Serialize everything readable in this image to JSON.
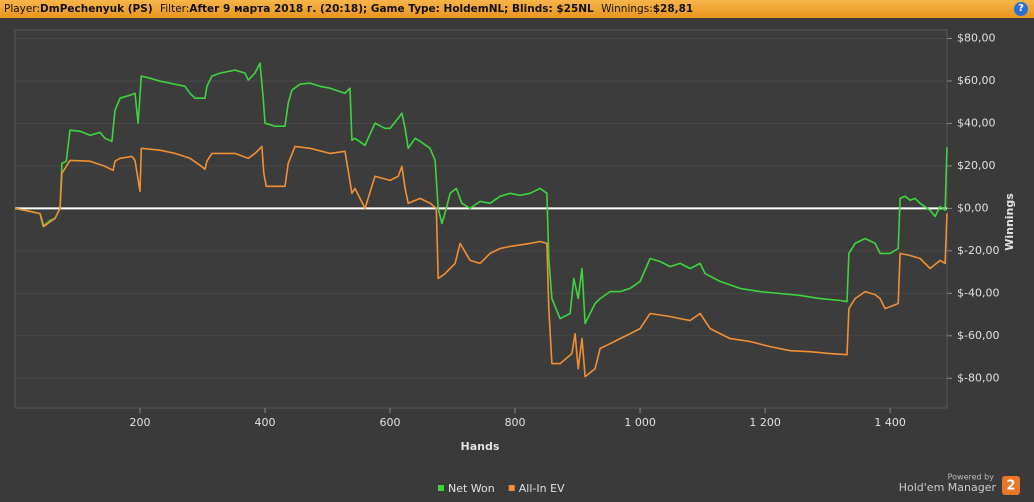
{
  "header": {
    "player_label": "Player:",
    "player": "DmPechenyuk (PS)",
    "filter_label": "Filter:",
    "filter": "After 9 марта 2018 г. (20:18); Game Type: HoldemNL; Blinds: $25NL",
    "winnings_label": "Winnings:",
    "winnings": "$28,81",
    "help": "?"
  },
  "footer": {
    "powered_by": "Powered by",
    "brand": "Hold'em Manager",
    "logo": "2"
  },
  "chart_data": {
    "type": "line",
    "xlabel": "Hands",
    "ylabel": "Winnings",
    "xlim": [
      0,
      1491
    ],
    "ylim": [
      -94,
      84
    ],
    "xticks": [
      200,
      400,
      600,
      800,
      {
        "value": 1000,
        "label": "1 000"
      },
      {
        "value": 1200,
        "label": "1 200"
      },
      {
        "value": 1400,
        "label": "1 400"
      }
    ],
    "yticks": [
      {
        "value": 80,
        "label": "$80,00"
      },
      {
        "value": 60,
        "label": "$60,00"
      },
      {
        "value": 40,
        "label": "$40,00"
      },
      {
        "value": 20,
        "label": "$20,00"
      },
      {
        "value": 0,
        "label": "$0,00"
      },
      {
        "value": -20,
        "label": "$-20,00"
      },
      {
        "value": -40,
        "label": "$-40,00"
      },
      {
        "value": -60,
        "label": "$-60,00"
      },
      {
        "value": -80,
        "label": "$-80,00"
      }
    ],
    "grid": true,
    "legend": "bottom",
    "series": [
      {
        "name": "Net Won",
        "color": "#3fd43f",
        "x": [
          0,
          24,
          40,
          45,
          56,
          64,
          72,
          75,
          82,
          88,
          104,
          120,
          136,
          144,
          155,
          160,
          168,
          184,
          192,
          197,
          202,
          216,
          232,
          248,
          272,
          280,
          288,
          304,
          307,
          315,
          328,
          352,
          368,
          373,
          384,
          392,
          397,
          400,
          416,
          432,
          437,
          443,
          456,
          472,
          488,
          504,
          528,
          536,
          539,
          544,
          560,
          576,
          592,
          600,
          613,
          619,
          624,
          629,
          640,
          648,
          664,
          672,
          677,
          683,
          690,
          696,
          706,
          715,
          728,
          744,
          760,
          776,
          792,
          808,
          824,
          840,
          851,
          854,
          859,
          872,
          888,
          894,
          901,
          907,
          912,
          920,
          928,
          936,
          952,
          968,
          984,
          1000,
          1016,
          1032,
          1048,
          1064,
          1080,
          1096,
          1104,
          1128,
          1160,
          1192,
          1224,
          1256,
          1288,
          1320,
          1331,
          1334,
          1344,
          1360,
          1376,
          1384,
          1400,
          1413,
          1416,
          1424,
          1432,
          1440,
          1448,
          1464,
          1472,
          1480,
          1488,
          1491
        ],
        "values": [
          0,
          -1.4,
          -2.4,
          -8.5,
          -5.7,
          -4.7,
          0,
          21.2,
          22.2,
          36.8,
          36.3,
          34.4,
          35.8,
          33.0,
          31.6,
          46.2,
          51.9,
          53.3,
          54.2,
          40.1,
          62.3,
          61.3,
          59.9,
          59.0,
          57.5,
          54.2,
          51.9,
          51.9,
          57.5,
          62.3,
          63.7,
          65.1,
          63.7,
          60.4,
          63.7,
          68.4,
          51.9,
          40.1,
          38.7,
          38.7,
          49.5,
          55.7,
          58.5,
          59.0,
          57.5,
          56.6,
          54.2,
          56.6,
          32.1,
          33.0,
          29.7,
          40.1,
          37.7,
          37.7,
          42.5,
          44.8,
          37.7,
          28.3,
          33.0,
          31.6,
          28.3,
          22.6,
          0,
          -7.1,
          0,
          7.1,
          9.4,
          2.4,
          0,
          3.3,
          2.4,
          5.7,
          7.1,
          6.1,
          7.1,
          9.4,
          7.1,
          -23.6,
          -42.5,
          -51.9,
          -49.5,
          -33.0,
          -42.5,
          -28.3,
          -54.2,
          -49.5,
          -44.8,
          -42.5,
          -39.2,
          -39.2,
          -37.7,
          -34.4,
          -23.6,
          -25.0,
          -27.4,
          -25.9,
          -28.3,
          -25.9,
          -30.7,
          -34.4,
          -37.7,
          -39.2,
          -40.1,
          -41.0,
          -42.5,
          -43.4,
          -43.9,
          -21.2,
          -16.5,
          -14.2,
          -16.5,
          -21.2,
          -21.2,
          -18.9,
          4.7,
          5.7,
          3.8,
          4.7,
          2.4,
          -0.9,
          -3.8,
          0.9,
          -0.9,
          28.81
        ]
      },
      {
        "name": "All-In EV",
        "color": "#f28f34",
        "x": [
          0,
          40,
          46,
          64,
          72,
          75,
          88,
          120,
          144,
          157,
          160,
          168,
          187,
          192,
          200,
          202,
          232,
          256,
          280,
          296,
          304,
          307,
          315,
          352,
          373,
          384,
          395,
          398,
          402,
          432,
          437,
          448,
          472,
          504,
          528,
          539,
          544,
          560,
          576,
          600,
          613,
          619,
          624,
          629,
          648,
          664,
          674,
          677,
          688,
          704,
          712,
          728,
          744,
          760,
          776,
          792,
          824,
          840,
          851,
          854,
          859,
          872,
          891,
          896,
          901,
          907,
          912,
          928,
          936,
          952,
          968,
          984,
          1000,
          1016,
          1048,
          1064,
          1080,
          1096,
          1112,
          1144,
          1176,
          1208,
          1240,
          1272,
          1304,
          1331,
          1334,
          1344,
          1360,
          1376,
          1384,
          1392,
          1413,
          1416,
          1432,
          1448,
          1464,
          1480,
          1488,
          1491
        ],
        "values": [
          0,
          -2.4,
          -8.5,
          -4.7,
          0,
          16.5,
          22.6,
          22.2,
          19.8,
          17.9,
          22.2,
          23.6,
          24.5,
          22.6,
          8.0,
          28.3,
          27.4,
          25.9,
          23.6,
          20.3,
          18.4,
          22.2,
          25.9,
          25.9,
          23.6,
          25.9,
          29.2,
          16.5,
          10.4,
          10.4,
          21.2,
          29.2,
          28.3,
          25.9,
          26.9,
          7.1,
          9.4,
          0,
          15.1,
          13.2,
          15.1,
          19.8,
          9.4,
          2.4,
          4.7,
          2.4,
          0,
          -33.0,
          -30.7,
          -25.9,
          -16.5,
          -24.5,
          -25.9,
          -21.2,
          -18.9,
          -17.9,
          -16.5,
          -15.6,
          -16.5,
          -47.2,
          -73.1,
          -73.1,
          -68.4,
          -59.0,
          -75.5,
          -61.3,
          -79.2,
          -75.5,
          -66.0,
          -63.7,
          -61.3,
          -59.0,
          -56.6,
          -49.5,
          -50.9,
          -51.9,
          -52.8,
          -49.5,
          -56.6,
          -61.3,
          -62.7,
          -65.1,
          -67.0,
          -67.5,
          -68.4,
          -68.9,
          -47.2,
          -42.5,
          -39.2,
          -40.6,
          -42.5,
          -47.2,
          -44.8,
          -21.2,
          -22.2,
          -23.6,
          -28.3,
          -24.5,
          -25.9,
          -2.4
        ]
      }
    ]
  }
}
